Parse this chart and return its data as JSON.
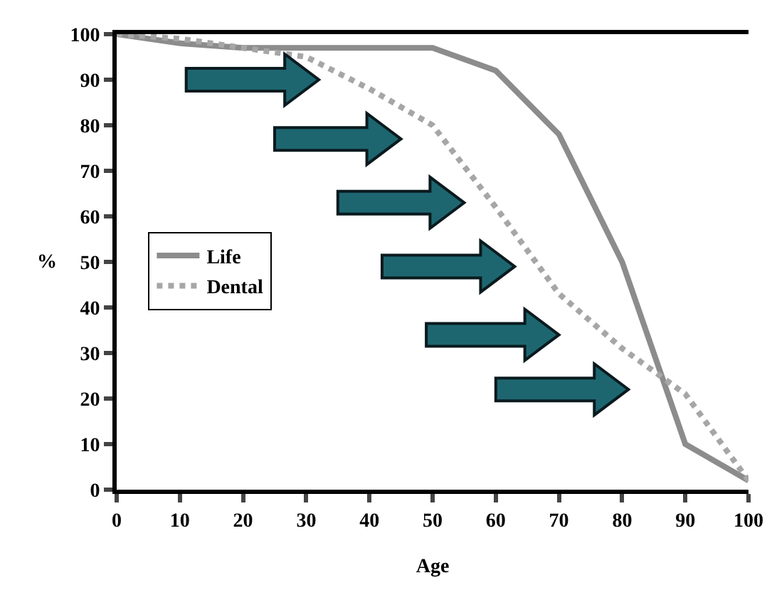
{
  "chart_data": {
    "type": "line",
    "xlabel": "Age",
    "ylabel": "%",
    "x": [
      0,
      10,
      20,
      30,
      40,
      50,
      60,
      70,
      80,
      90,
      100
    ],
    "series": [
      {
        "name": "Life",
        "color": "#8c8c8c",
        "line_style": "solid",
        "values": [
          100,
          98,
          97,
          97,
          97,
          97,
          92,
          78,
          50,
          10,
          2
        ]
      },
      {
        "name": "Dental",
        "color": "#a6a6a6",
        "line_style": "dotted",
        "values": [
          100,
          99,
          97,
          95,
          88,
          80,
          62,
          43,
          31,
          21,
          2
        ]
      }
    ],
    "xlim": [
      0,
      100
    ],
    "xticks": [
      0,
      10,
      20,
      30,
      40,
      50,
      60,
      70,
      80,
      90,
      100
    ],
    "ylim": [
      0,
      100
    ],
    "yticks": [
      0,
      10,
      20,
      30,
      40,
      50,
      60,
      70,
      80,
      90,
      100
    ],
    "grid": false,
    "legend": "left",
    "marker": "none"
  }
}
